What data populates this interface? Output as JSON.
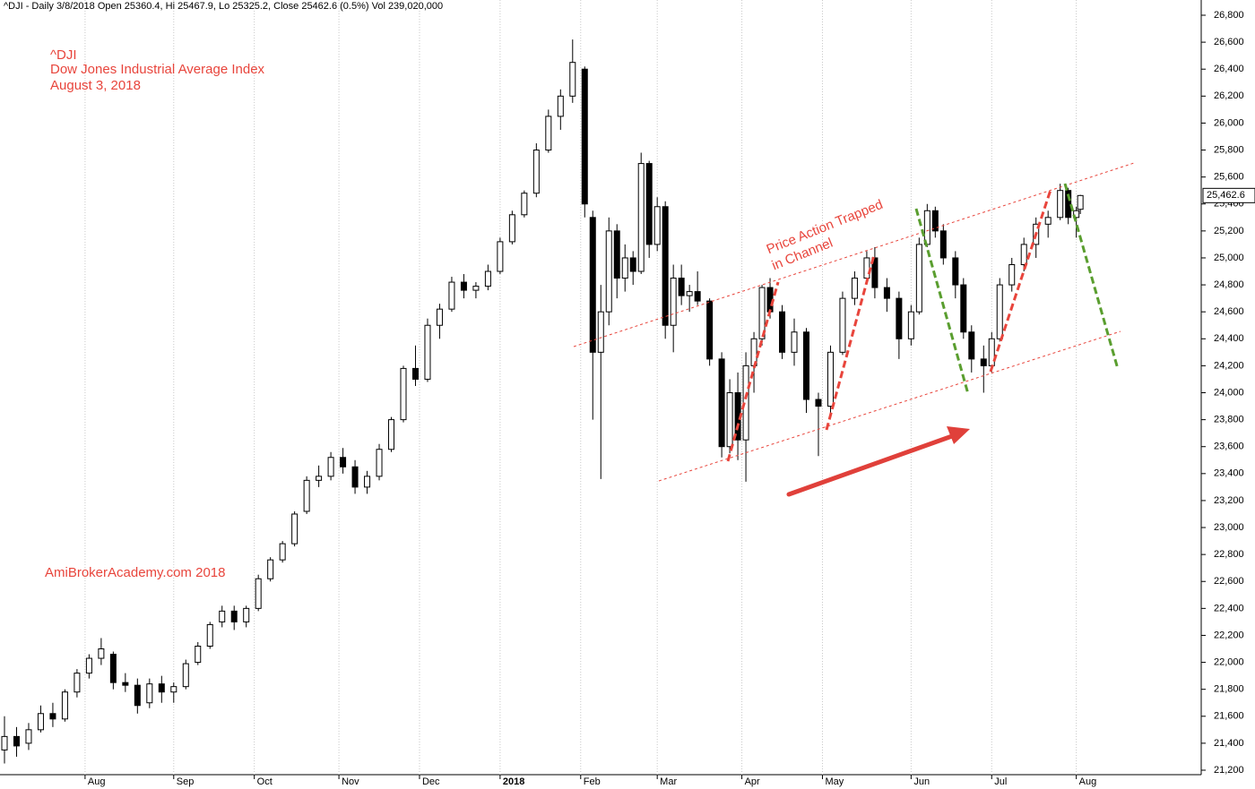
{
  "chart_data": {
    "type": "candlestick",
    "header": "^DJI - Daily 3/8/2018 Open 25360.4, Hi 25467.9, Lo 25325.2, Close 25462.6 (0.5%) Vol 239,020,000",
    "title": "^DJI",
    "subtitle": "Dow Jones Industrial Average Index",
    "date": "August 3, 2018",
    "watermark": "AmiBrokerAcademy.com  2018",
    "annotation": [
      "Price Action Trapped",
      "in Channel"
    ],
    "up_color": "#ffffff",
    "down_color": "#000000",
    "grid": "x",
    "last_price": {
      "value": 25462.6,
      "label": "25,462.6"
    },
    "xlim": [
      0,
      297
    ],
    "xticks": [
      {
        "value": 20,
        "label": "Aug"
      },
      {
        "value": 42,
        "label": "Sep"
      },
      {
        "value": 62,
        "label": "Oct"
      },
      {
        "value": 83,
        "label": "Nov"
      },
      {
        "value": 103,
        "label": "Dec"
      },
      {
        "value": 123,
        "label": "2018"
      },
      {
        "value": 143,
        "label": "Feb"
      },
      {
        "value": 162,
        "label": "Mar"
      },
      {
        "value": 183,
        "label": "Apr"
      },
      {
        "value": 203,
        "label": "May"
      },
      {
        "value": 225,
        "label": "Jun"
      },
      {
        "value": 245,
        "label": "Jul"
      },
      {
        "value": 266,
        "label": "Aug"
      }
    ],
    "ylim": [
      21200,
      26800
    ],
    "yticks": [
      {
        "value": 21200,
        "label": "21,200"
      },
      {
        "value": 21400,
        "label": "21,400"
      },
      {
        "value": 21600,
        "label": "21,600"
      },
      {
        "value": 21800,
        "label": "21,800"
      },
      {
        "value": 22000,
        "label": "22,000"
      },
      {
        "value": 22200,
        "label": "22,200"
      },
      {
        "value": 22400,
        "label": "22,400"
      },
      {
        "value": 22600,
        "label": "22,600"
      },
      {
        "value": 22800,
        "label": "22,800"
      },
      {
        "value": 23000,
        "label": "23,000"
      },
      {
        "value": 23200,
        "label": "23,200"
      },
      {
        "value": 23400,
        "label": "23,400"
      },
      {
        "value": 23600,
        "label": "23,600"
      },
      {
        "value": 23800,
        "label": "23,800"
      },
      {
        "value": 24000,
        "label": "24,000"
      },
      {
        "value": 24200,
        "label": "24,200"
      },
      {
        "value": 24400,
        "label": "24,400"
      },
      {
        "value": 24600,
        "label": "24,600"
      },
      {
        "value": 24800,
        "label": "24,800"
      },
      {
        "value": 25000,
        "label": "25,000"
      },
      {
        "value": 25200,
        "label": "25,200"
      },
      {
        "value": 25400,
        "label": "25,400"
      },
      {
        "value": 25600,
        "label": "25,600"
      },
      {
        "value": 25800,
        "label": "25,800"
      },
      {
        "value": 26000,
        "label": "26,000"
      },
      {
        "value": 26200,
        "label": "26,200"
      },
      {
        "value": 26400,
        "label": "26,400"
      },
      {
        "value": 26600,
        "label": "26,600"
      },
      {
        "value": 26800,
        "label": "26,800"
      }
    ],
    "x": [
      0,
      3,
      6,
      9,
      12,
      15,
      18,
      21,
      24,
      27,
      30,
      33,
      36,
      39,
      42,
      45,
      48,
      51,
      54,
      57,
      60,
      63,
      66,
      69,
      72,
      75,
      78,
      81,
      84,
      87,
      90,
      93,
      96,
      99,
      102,
      105,
      108,
      111,
      114,
      117,
      120,
      123,
      126,
      129,
      132,
      135,
      138,
      141,
      144,
      146,
      148,
      150,
      152,
      154,
      156,
      158,
      160,
      162,
      164,
      166,
      168,
      170,
      172,
      175,
      178,
      180,
      182,
      184,
      186,
      188,
      190,
      193,
      196,
      199,
      202,
      205,
      208,
      211,
      214,
      216,
      219,
      222,
      225,
      227,
      229,
      231,
      233,
      236,
      238,
      240,
      243,
      245,
      247,
      250,
      253,
      256,
      259,
      262,
      264,
      266,
      267
    ],
    "open": [
      21350,
      21450,
      21400,
      21500,
      21620,
      21580,
      21780,
      21920,
      22030,
      22060,
      21850,
      21830,
      21700,
      21840,
      21780,
      21820,
      22000,
      22120,
      22300,
      22380,
      22300,
      22400,
      22620,
      22760,
      22880,
      23120,
      23350,
      23380,
      23520,
      23450,
      23300,
      23380,
      23580,
      23800,
      24180,
      24100,
      24500,
      24620,
      24820,
      24760,
      24790,
      24900,
      25120,
      25320,
      25480,
      25800,
      26050,
      26200,
      26400,
      25300,
      24300,
      24600,
      25200,
      24850,
      25000,
      24900,
      25700,
      25100,
      25380,
      24500,
      24850,
      24720,
      24750,
      24680,
      24250,
      23600,
      24000,
      23650,
      24200,
      24400,
      24780,
      24600,
      24300,
      24450,
      23950,
      23900,
      24300,
      24700,
      24850,
      25000,
      24780,
      24700,
      24400,
      24600,
      25100,
      25350,
      25200,
      25000,
      24800,
      24450,
      24250,
      24200,
      24400,
      24800,
      24950,
      25100,
      25250,
      25300,
      25500,
      25300,
      25360.4
    ],
    "high": [
      21600,
      21520,
      21550,
      21680,
      21700,
      21800,
      21950,
      22060,
      22180,
      22080,
      21920,
      21880,
      21880,
      21900,
      21850,
      22020,
      22150,
      22300,
      22420,
      22420,
      22420,
      22650,
      22780,
      22900,
      23120,
      23380,
      23460,
      23560,
      23590,
      23500,
      23420,
      23620,
      23820,
      24200,
      24350,
      24550,
      24660,
      24860,
      24880,
      24820,
      24950,
      25150,
      25350,
      25500,
      25850,
      26100,
      26250,
      26620,
      26420,
      25350,
      24800,
      25300,
      25250,
      25100,
      25050,
      25780,
      25720,
      25450,
      25420,
      24950,
      24950,
      24800,
      24900,
      24700,
      24300,
      24100,
      24150,
      24300,
      24450,
      24800,
      24850,
      24650,
      24550,
      24480,
      24000,
      24350,
      24750,
      24900,
      25050,
      25080,
      24850,
      24750,
      24650,
      25150,
      25400,
      25380,
      25250,
      25050,
      24850,
      24500,
      24350,
      24450,
      24850,
      25000,
      25150,
      25300,
      25350,
      25550,
      25520,
      25380,
      25467.9
    ],
    "low": [
      21250,
      21300,
      21350,
      21480,
      21520,
      21560,
      21740,
      21880,
      21980,
      21800,
      21780,
      21620,
      21660,
      21700,
      21700,
      21800,
      21980,
      22100,
      22260,
      22240,
      22260,
      22380,
      22600,
      22740,
      22860,
      23100,
      23300,
      23350,
      23400,
      23250,
      23250,
      23350,
      23560,
      23780,
      24050,
      24080,
      24400,
      24600,
      24700,
      24700,
      24760,
      24880,
      25100,
      25300,
      25450,
      25780,
      25950,
      26150,
      25300,
      23800,
      23360,
      24500,
      24700,
      24750,
      24800,
      24880,
      25000,
      25050,
      24400,
      24300,
      24650,
      24600,
      24650,
      24200,
      23520,
      23550,
      23500,
      23340,
      24000,
      24350,
      24550,
      24250,
      24200,
      23850,
      23530,
      23850,
      24280,
      24650,
      24820,
      24700,
      24600,
      24250,
      24350,
      24580,
      25080,
      25150,
      24950,
      24700,
      24400,
      24150,
      24000,
      24150,
      24380,
      24750,
      24900,
      25000,
      25150,
      25280,
      25250,
      25150,
      25325.2
    ],
    "close": [
      21450,
      21380,
      21500,
      21620,
      21580,
      21780,
      21920,
      22030,
      22100,
      21850,
      21830,
      21680,
      21840,
      21780,
      21820,
      21990,
      22120,
      22280,
      22380,
      22300,
      22400,
      22620,
      22760,
      22880,
      23100,
      23350,
      23380,
      23520,
      23450,
      23300,
      23380,
      23580,
      23800,
      24180,
      24100,
      24500,
      24620,
      24820,
      24760,
      24790,
      24900,
      25120,
      25320,
      25480,
      25800,
      26050,
      26200,
      26450,
      25400,
      24300,
      24600,
      25200,
      24850,
      25000,
      24900,
      25700,
      25100,
      25380,
      24500,
      24850,
      24720,
      24750,
      24680,
      24250,
      23600,
      24000,
      23650,
      24200,
      24400,
      24780,
      24600,
      24300,
      24450,
      23950,
      23900,
      24300,
      24700,
      24850,
      25000,
      24780,
      24700,
      24400,
      24600,
      25100,
      25350,
      25200,
      25000,
      24800,
      24450,
      24250,
      24200,
      24400,
      24800,
      24950,
      25100,
      25250,
      25300,
      25500,
      25300,
      25350,
      25462.6
    ]
  }
}
